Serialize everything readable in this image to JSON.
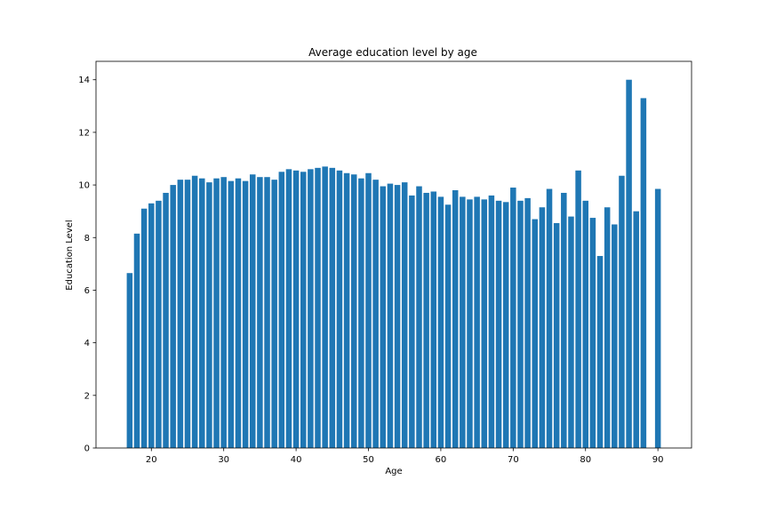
{
  "chart_data": {
    "type": "bar",
    "title": "Average education level by age",
    "xlabel": "Age",
    "ylabel": "Education Level",
    "xlim": [
      12.35,
      94.65
    ],
    "ylim": [
      0,
      14.7
    ],
    "xticks": [
      20,
      30,
      40,
      50,
      60,
      70,
      80,
      90
    ],
    "yticks": [
      0,
      2,
      4,
      6,
      8,
      10,
      12,
      14
    ],
    "bar_color": "#1f77b4",
    "grid": false,
    "x": [
      17,
      18,
      19,
      20,
      21,
      22,
      23,
      24,
      25,
      26,
      27,
      28,
      29,
      30,
      31,
      32,
      33,
      34,
      35,
      36,
      37,
      38,
      39,
      40,
      41,
      42,
      43,
      44,
      45,
      46,
      47,
      48,
      49,
      50,
      51,
      52,
      53,
      54,
      55,
      56,
      57,
      58,
      59,
      60,
      61,
      62,
      63,
      64,
      65,
      66,
      67,
      68,
      69,
      70,
      71,
      72,
      73,
      74,
      75,
      76,
      77,
      78,
      79,
      80,
      81,
      82,
      83,
      84,
      85,
      86,
      87,
      88,
      90
    ],
    "values": [
      6.65,
      8.15,
      9.1,
      9.3,
      9.4,
      9.7,
      10.0,
      10.2,
      10.2,
      10.35,
      10.25,
      10.1,
      10.25,
      10.3,
      10.15,
      10.25,
      10.15,
      10.4,
      10.3,
      10.3,
      10.2,
      10.5,
      10.6,
      10.55,
      10.5,
      10.6,
      10.65,
      10.7,
      10.65,
      10.55,
      10.45,
      10.4,
      10.25,
      10.45,
      10.2,
      9.95,
      10.05,
      10.0,
      10.1,
      9.6,
      9.95,
      9.7,
      9.75,
      9.55,
      9.25,
      9.8,
      9.55,
      9.45,
      9.55,
      9.45,
      9.6,
      9.4,
      9.35,
      9.9,
      9.4,
      9.5,
      8.7,
      9.15,
      9.85,
      8.55,
      9.7,
      8.8,
      10.55,
      9.4,
      8.75,
      7.3,
      9.15,
      8.5,
      10.35,
      14.0,
      9.0,
      13.3,
      9.85
    ]
  }
}
